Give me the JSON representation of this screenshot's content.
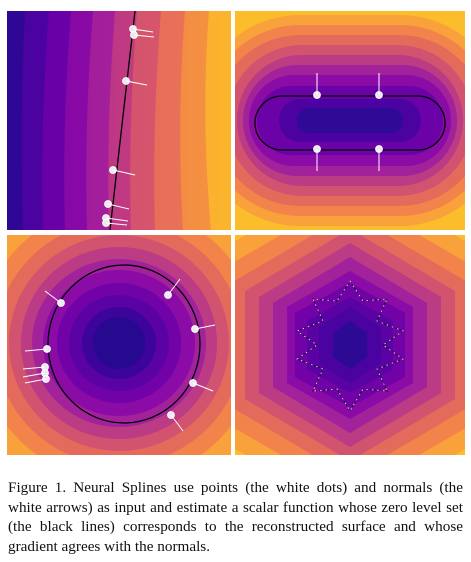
{
  "figure": {
    "panels": [
      {
        "id": "line",
        "shape": "straight-line zero level set"
      },
      {
        "id": "capsule",
        "shape": "rounded-rectangle zero level set"
      },
      {
        "id": "ellipse",
        "shape": "ellipse zero level set"
      },
      {
        "id": "snowflake",
        "shape": "Koch snowflake point cloud"
      }
    ],
    "colors": {
      "palette": [
        "#1b0c8c",
        "#3a049a",
        "#5b02a3",
        "#7b02a8",
        "#9a179b",
        "#b52f8c",
        "#cc4778",
        "#e16462",
        "#f2844b",
        "#fca636",
        "#fccd25"
      ],
      "zero_level": "#000000",
      "points_normals": "#ffffff"
    }
  },
  "caption": {
    "text": "Figure 1. Neural Splines use points (the white dots) and normals (the white arrows) as input and estimate a scalar function whose zero level set (the black lines) corresponds to the reconstructed surface and whose gradient agrees with the normals."
  }
}
